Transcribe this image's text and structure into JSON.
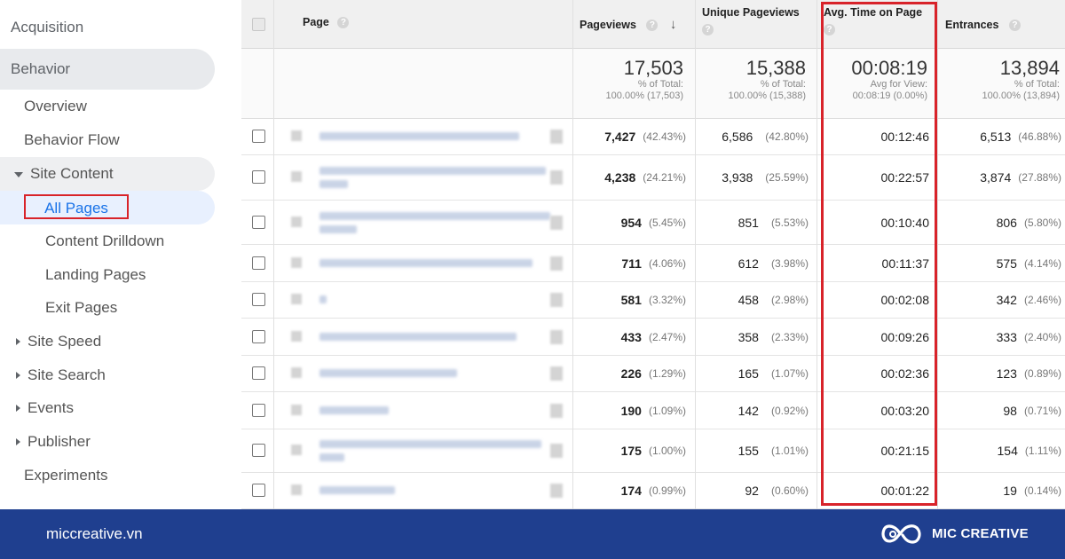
{
  "sidebar": {
    "acquisition": "Acquisition",
    "behavior": "Behavior",
    "overview": "Overview",
    "behavior_flow": "Behavior Flow",
    "site_content": "Site Content",
    "all_pages": "All Pages",
    "content_drilldown": "Content Drilldown",
    "landing_pages": "Landing Pages",
    "exit_pages": "Exit Pages",
    "site_speed": "Site Speed",
    "site_search": "Site Search",
    "events": "Events",
    "publisher": "Publisher",
    "experiments": "Experiments"
  },
  "table": {
    "headers": {
      "page": "Page",
      "pageviews": "Pageviews",
      "unique_pageviews": "Unique Pageviews",
      "avg_time": "Avg. Time on Page",
      "entrances": "Entrances"
    },
    "totals": {
      "pageviews": "17,503",
      "pageviews_sub1": "% of Total:",
      "pageviews_sub2": "100.00% (17,503)",
      "unique": "15,388",
      "unique_sub1": "% of Total:",
      "unique_sub2": "100.00% (15,388)",
      "avg_time": "00:08:19",
      "avg_time_sub1": "Avg for View:",
      "avg_time_sub2": "00:08:19 (0.00%)",
      "entrances": "13,894",
      "entrances_sub1": "% of Total:",
      "entrances_sub2": "100.00% (13,894)"
    },
    "rows": [
      {
        "pv": "7,427",
        "pv_pct": "(42.43%)",
        "upv": "6,586",
        "upv_pct": "(42.80%)",
        "time": "00:12:46",
        "ent": "6,513",
        "ent_pct": "(46.88%)"
      },
      {
        "pv": "4,238",
        "pv_pct": "(24.21%)",
        "upv": "3,938",
        "upv_pct": "(25.59%)",
        "time": "00:22:57",
        "ent": "3,874",
        "ent_pct": "(27.88%)"
      },
      {
        "pv": "954",
        "pv_pct": "(5.45%)",
        "upv": "851",
        "upv_pct": "(5.53%)",
        "time": "00:10:40",
        "ent": "806",
        "ent_pct": "(5.80%)"
      },
      {
        "pv": "711",
        "pv_pct": "(4.06%)",
        "upv": "612",
        "upv_pct": "(3.98%)",
        "time": "00:11:37",
        "ent": "575",
        "ent_pct": "(4.14%)"
      },
      {
        "pv": "581",
        "pv_pct": "(3.32%)",
        "upv": "458",
        "upv_pct": "(2.98%)",
        "time": "00:02:08",
        "ent": "342",
        "ent_pct": "(2.46%)"
      },
      {
        "pv": "433",
        "pv_pct": "(2.47%)",
        "upv": "358",
        "upv_pct": "(2.33%)",
        "time": "00:09:26",
        "ent": "333",
        "ent_pct": "(2.40%)"
      },
      {
        "pv": "226",
        "pv_pct": "(1.29%)",
        "upv": "165",
        "upv_pct": "(1.07%)",
        "time": "00:02:36",
        "ent": "123",
        "ent_pct": "(0.89%)"
      },
      {
        "pv": "190",
        "pv_pct": "(1.09%)",
        "upv": "142",
        "upv_pct": "(0.92%)",
        "time": "00:03:20",
        "ent": "98",
        "ent_pct": "(0.71%)"
      },
      {
        "pv": "175",
        "pv_pct": "(1.00%)",
        "upv": "155",
        "upv_pct": "(1.01%)",
        "time": "00:21:15",
        "ent": "154",
        "ent_pct": "(1.11%)"
      },
      {
        "pv": "174",
        "pv_pct": "(0.99%)",
        "upv": "92",
        "upv_pct": "(0.60%)",
        "time": "00:01:22",
        "ent": "19",
        "ent_pct": "(0.14%)"
      }
    ]
  },
  "footer": {
    "site": "miccreative.vn",
    "brand": "MIC CREATIVE"
  },
  "colors": {
    "highlight_border": "#d8232a",
    "footer_bg": "#1f3f8f",
    "active_text": "#1a73e8"
  },
  "icons": {
    "help": "question-circle-icon",
    "sort": "arrow-down-icon",
    "logo": "infinity-logo-icon"
  }
}
